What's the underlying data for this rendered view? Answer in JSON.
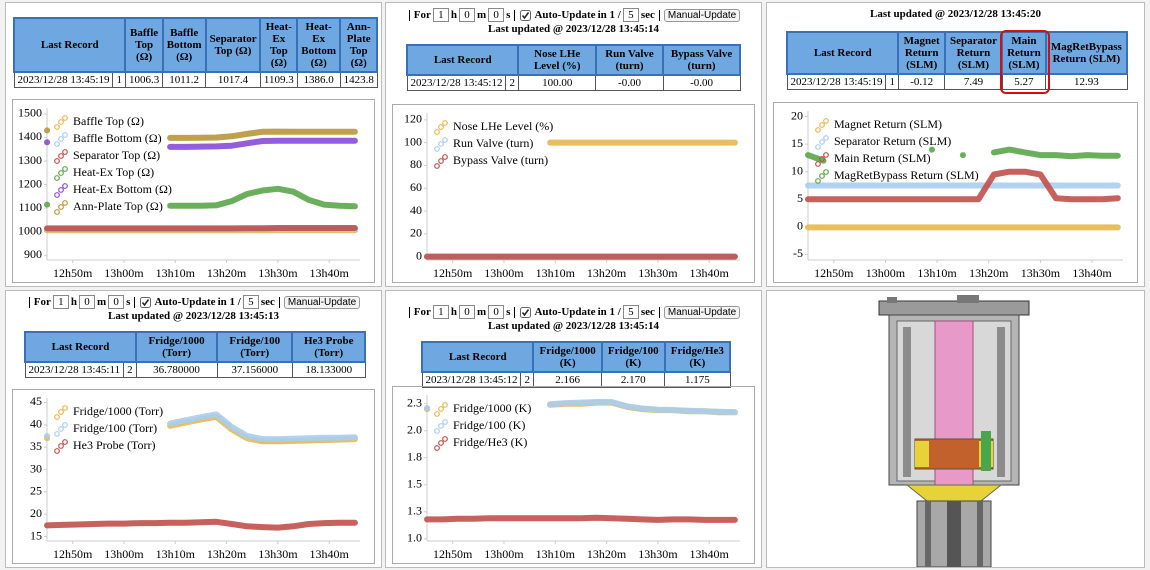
{
  "panels": [
    {
      "table": {
        "headers": [
          "Last Record",
          "Baffle Top (Ω)",
          "Baffle Bottom (Ω)",
          "Separator Top (Ω)",
          "Heat-Ex Top (Ω)",
          "Heat-Ex Bottom (Ω)",
          "Ann-Plate Top (Ω)"
        ],
        "rows": [
          [
            "2023/12/28 13:45:19",
            "1",
            "1006.3",
            "1011.2",
            "1017.4",
            "1109.3",
            "1386.0",
            "1423.8"
          ]
        ]
      },
      "chart_data": {
        "type": "line",
        "x": [
          765,
          768,
          771,
          774,
          777,
          780,
          783,
          786,
          789,
          792,
          795,
          798,
          801,
          804,
          807,
          810,
          813,
          816,
          819,
          822,
          825
        ],
        "xlim": [
          765,
          826
        ],
        "xticks": [
          {
            "value": 770,
            "label": "12h50m"
          },
          {
            "value": 780,
            "label": "13h00m"
          },
          {
            "value": 790,
            "label": "13h10m"
          },
          {
            "value": 800,
            "label": "13h20m"
          },
          {
            "value": 810,
            "label": "13h30m"
          },
          {
            "value": 820,
            "label": "13h40m"
          }
        ],
        "ylim": [
          880,
          1525
        ],
        "yticks": [
          900,
          1000,
          1100,
          1200,
          1300,
          1400,
          1500
        ],
        "series": [
          {
            "name": "Baffle Top (Ω)",
            "color": "#e6b84c",
            "values": [
              1006,
              1006,
              1006,
              1006,
              1006,
              1006,
              1006,
              1006,
              1006,
              1006,
              1006,
              1006,
              1006,
              1006,
              1006,
              1006,
              1006,
              1006,
              1006,
              1006,
              1006
            ]
          },
          {
            "name": "Baffle Bottom (Ω)",
            "color": "#a9cdf0",
            "values": [
              1011,
              1011,
              1011,
              1011,
              1011,
              1011,
              1011,
              1011,
              1011,
              1011,
              1011,
              1011,
              1011,
              1011,
              1011,
              1011,
              1011,
              1011,
              1011,
              1011,
              1011
            ]
          },
          {
            "name": "Separator Top (Ω)",
            "color": "#c0504d",
            "values": [
              1014,
              1014,
              1014,
              1014,
              1014,
              1014,
              1014,
              1014,
              1014,
              1014,
              1014,
              1014,
              1014,
              1015,
              1015,
              1016,
              1016,
              1016,
              1016,
              1016,
              1016
            ]
          },
          {
            "name": "Heat-Ex Top (Ω)",
            "color": "#5aa74a",
            "values": [
              1115,
              null,
              null,
              null,
              null,
              null,
              null,
              null,
              1110,
              1110,
              1110,
              1112,
              1130,
              1160,
              1175,
              1182,
              1170,
              1135,
              1115,
              1110,
              1108
            ]
          },
          {
            "name": "Heat-Ex Bottom (Ω)",
            "color": "#8a4bd8",
            "values": [
              1380,
              null,
              null,
              null,
              null,
              null,
              null,
              null,
              1360,
              1360,
              1361,
              1362,
              1365,
              1375,
              1385,
              1386,
              1386,
              1386,
              1386,
              1386,
              1386
            ]
          },
          {
            "name": "Ann-Plate Top (Ω)",
            "color": "#b8963a",
            "values": [
              1430,
              null,
              null,
              null,
              null,
              null,
              null,
              null,
              1398,
              1398,
              1399,
              1400,
              1405,
              1415,
              1424,
              1425,
              1424,
              1424,
              1424,
              1424,
              1424
            ]
          }
        ]
      }
    },
    {
      "controls": {
        "for": "For",
        "hours": "1",
        "h": "h",
        "minutes": "0",
        "m": "m",
        "seconds": "0",
        "s": "s",
        "auto_update": "Auto-Update",
        "interval_prefix": "in 1 /",
        "interval": "5",
        "sec": "sec",
        "button": "Manual-Update"
      },
      "last_updated": "Last updated @ 2023/12/28 13:45:14",
      "table": {
        "headers": [
          "Last Record",
          "Nose LHe Level (%)",
          "Run Valve (turn)",
          "Bypass Valve (turn)"
        ],
        "rows": [
          [
            "2023/12/28 13:45:12",
            "2",
            "100.00",
            "-0.00",
            "-0.00"
          ]
        ]
      },
      "chart_data": {
        "type": "line",
        "x": [
          765,
          768,
          771,
          774,
          777,
          780,
          783,
          786,
          789,
          792,
          795,
          798,
          801,
          804,
          807,
          810,
          813,
          816,
          819,
          822,
          825
        ],
        "xlim": [
          765,
          826
        ],
        "xticks": [
          {
            "value": 770,
            "label": "12h50m"
          },
          {
            "value": 780,
            "label": "13h00m"
          },
          {
            "value": 790,
            "label": "13h10m"
          },
          {
            "value": 800,
            "label": "13h20m"
          },
          {
            "value": 810,
            "label": "13h30m"
          },
          {
            "value": 820,
            "label": "13h40m"
          }
        ],
        "ylim": [
          -3,
          126
        ],
        "yticks": [
          0,
          20,
          40,
          60,
          80,
          100,
          120
        ],
        "series": [
          {
            "name": "Nose LHe Level (%)",
            "color": "#e6b84c",
            "values": [
              null,
              null,
              null,
              null,
              null,
              null,
              null,
              null,
              100,
              100,
              100,
              100,
              100,
              100,
              100,
              100,
              100,
              100,
              100,
              100,
              100
            ]
          },
          {
            "name": "Run Valve (turn)",
            "color": "#a9cdf0",
            "values": [
              0,
              0,
              0,
              0,
              0,
              0,
              0,
              0,
              0,
              0,
              0,
              0,
              0,
              0,
              0,
              0,
              0,
              0,
              0,
              0,
              0
            ]
          },
          {
            "name": "Bypass Valve (turn)",
            "color": "#c0504d",
            "values": [
              0,
              0,
              0,
              0,
              0,
              0,
              0,
              0,
              0,
              0,
              0,
              0,
              0,
              0,
              0,
              0,
              0,
              0,
              0,
              0,
              0
            ]
          }
        ]
      }
    },
    {
      "last_updated": "Last updated @ 2023/12/28 13:45:20",
      "table": {
        "headers": [
          "Last Record",
          "Magnet Return (SLM)",
          "Separator Return (SLM)",
          "Main Return (SLM)",
          "MagRetBypass Return (SLM)"
        ],
        "rows": [
          [
            "2023/12/28 13:45:19",
            "1",
            "-0.12",
            "7.49",
            "5.27",
            "12.93"
          ]
        ]
      },
      "chart_data": {
        "type": "line",
        "x": [
          765,
          768,
          771,
          774,
          777,
          780,
          783,
          786,
          789,
          792,
          795,
          798,
          801,
          804,
          807,
          810,
          813,
          816,
          819,
          822,
          825
        ],
        "xlim": [
          765,
          826
        ],
        "xticks": [
          {
            "value": 770,
            "label": "12h50m"
          },
          {
            "value": 780,
            "label": "13h00m"
          },
          {
            "value": 790,
            "label": "13h10m"
          },
          {
            "value": 800,
            "label": "13h20m"
          },
          {
            "value": 810,
            "label": "13h30m"
          },
          {
            "value": 820,
            "label": "13h40m"
          }
        ],
        "ylim": [
          -6,
          21
        ],
        "yticks": [
          -5,
          0,
          5,
          10,
          15,
          20
        ],
        "series": [
          {
            "name": "Magnet Return (SLM)",
            "color": "#e6b84c",
            "values": [
              -0.1,
              -0.1,
              -0.1,
              -0.1,
              -0.1,
              -0.1,
              -0.1,
              -0.1,
              -0.1,
              -0.1,
              -0.1,
              -0.1,
              -0.1,
              -0.1,
              -0.1,
              -0.1,
              -0.1,
              -0.1,
              -0.1,
              -0.1,
              -0.1
            ]
          },
          {
            "name": "Separator Return (SLM)",
            "color": "#a9cdf0",
            "values": [
              7.5,
              7.5,
              7.5,
              7.5,
              7.5,
              7.5,
              7.5,
              7.5,
              7.5,
              7.5,
              7.5,
              7.5,
              7.5,
              7.5,
              7.5,
              7.5,
              7.5,
              7.5,
              7.5,
              7.5,
              7.5
            ]
          },
          {
            "name": "Main Return (SLM)",
            "color": "#c0504d",
            "values": [
              5,
              5,
              5,
              5,
              5,
              5,
              5,
              5,
              5,
              5,
              5,
              5,
              9.5,
              10,
              10,
              9.5,
              5.2,
              5,
              5,
              5,
              5.2
            ]
          },
          {
            "name": "MagRetBypass Return (SLM)",
            "color": "#5aa74a",
            "values": [
              13,
              12,
              null,
              null,
              null,
              null,
              null,
              null,
              14,
              null,
              13,
              null,
              13.5,
              14,
              13.5,
              13,
              13,
              12.8,
              13,
              12.9,
              12.9
            ]
          }
        ]
      }
    },
    {
      "controls": {
        "for": "For",
        "hours": "1",
        "h": "h",
        "minutes": "0",
        "m": "m",
        "seconds": "0",
        "s": "s",
        "auto_update": "Auto-Update",
        "interval_prefix": "in 1 /",
        "interval": "5",
        "sec": "sec",
        "button": "Manual-Update"
      },
      "last_updated": "Last updated @ 2023/12/28 13:45:13",
      "table": {
        "headers": [
          "Last Record",
          "Fridge/1000 (Torr)",
          "Fridge/100 (Torr)",
          "He3 Probe (Torr)"
        ],
        "rows": [
          [
            "2023/12/28 13:45:11",
            "2",
            "36.780000",
            "37.156000",
            "18.133000"
          ]
        ]
      },
      "chart_data": {
        "type": "line",
        "x": [
          765,
          768,
          771,
          774,
          777,
          780,
          783,
          786,
          789,
          792,
          795,
          798,
          801,
          804,
          807,
          810,
          813,
          816,
          819,
          822,
          825
        ],
        "xlim": [
          765,
          826
        ],
        "xticks": [
          {
            "value": 770,
            "label": "12h50m"
          },
          {
            "value": 780,
            "label": "13h00m"
          },
          {
            "value": 790,
            "label": "13h10m"
          },
          {
            "value": 800,
            "label": "13h20m"
          },
          {
            "value": 810,
            "label": "13h30m"
          },
          {
            "value": 820,
            "label": "13h40m"
          }
        ],
        "ylim": [
          14,
          46
        ],
        "yticks": [
          15,
          20,
          25,
          30,
          35,
          40,
          45
        ],
        "series": [
          {
            "name": "Fridge/1000 (Torr)",
            "color": "#e6b84c",
            "values": [
              37,
              null,
              null,
              null,
              null,
              null,
              null,
              null,
              39.8,
              40.5,
              41.2,
              41.8,
              39,
              37,
              36.3,
              36.3,
              36.4,
              36.5,
              36.6,
              36.7,
              36.8
            ]
          },
          {
            "name": "Fridge/100 (Torr)",
            "color": "#a9cdf0",
            "values": [
              37.5,
              null,
              null,
              null,
              null,
              null,
              null,
              null,
              40.3,
              41,
              41.7,
              42.3,
              39.5,
              37.5,
              36.8,
              36.8,
              36.9,
              37,
              37.1,
              37.1,
              37.2
            ]
          },
          {
            "name": "He3 Probe (Torr)",
            "color": "#c0504d",
            "values": [
              17.5,
              17.6,
              17.7,
              17.8,
              17.9,
              17.9,
              18,
              18,
              18.1,
              18.1,
              18.2,
              18.3,
              17.8,
              17.3,
              17.1,
              17,
              17.3,
              17.8,
              18,
              18.1,
              18.1
            ]
          }
        ]
      }
    },
    {
      "controls": {
        "for": "For",
        "hours": "1",
        "h": "h",
        "minutes": "0",
        "m": "m",
        "seconds": "0",
        "s": "s",
        "auto_update": "Auto-Update",
        "interval_prefix": "in 1 /",
        "interval": "5",
        "sec": "sec",
        "button": "Manual-Update"
      },
      "last_updated": "Last updated @ 2023/12/28 13:45:14",
      "table": {
        "headers": [
          "Last Record",
          "Fridge/1000 (K)",
          "Fridge/100 (K)",
          "Fridge/He3 (K)"
        ],
        "rows": [
          [
            "2023/12/28 13:45:12",
            "2",
            "2.166",
            "2.170",
            "1.175"
          ]
        ]
      },
      "chart_data": {
        "type": "line",
        "x": [
          765,
          768,
          771,
          774,
          777,
          780,
          783,
          786,
          789,
          792,
          795,
          798,
          801,
          804,
          807,
          810,
          813,
          816,
          819,
          822,
          825
        ],
        "xlim": [
          765,
          826
        ],
        "xticks": [
          {
            "value": 770,
            "label": "12h50m"
          },
          {
            "value": 780,
            "label": "13h00m"
          },
          {
            "value": 790,
            "label": "13h10m"
          },
          {
            "value": 800,
            "label": "13h20m"
          },
          {
            "value": 810,
            "label": "13h30m"
          },
          {
            "value": 820,
            "label": "13h40m"
          }
        ],
        "ylim": [
          0.98,
          2.33
        ],
        "yticks": [
          {
            "value": 1,
            "label": "1.0"
          },
          {
            "value": 1.25,
            "label": "1.3"
          },
          1.5,
          {
            "value": 1.75,
            "label": "1.8"
          },
          {
            "value": 2,
            "label": "2.0"
          },
          {
            "value": 2.25,
            "label": "2.3"
          }
        ],
        "series": [
          {
            "name": "Fridge/1000 (K)",
            "color": "#e6b84c",
            "values": [
              2.2,
              null,
              null,
              null,
              null,
              null,
              null,
              null,
              2.24,
              2.25,
              2.25,
              2.26,
              2.26,
              2.22,
              2.2,
              2.19,
              2.19,
              2.18,
              2.18,
              2.17,
              2.17
            ]
          },
          {
            "name": "Fridge/100 (K)",
            "color": "#a9cdf0",
            "values": [
              2.21,
              null,
              null,
              null,
              null,
              null,
              null,
              null,
              2.245,
              2.255,
              2.26,
              2.265,
              2.265,
              2.225,
              2.205,
              2.195,
              2.19,
              2.185,
              2.18,
              2.175,
              2.17
            ]
          },
          {
            "name": "Fridge/He3 (K)",
            "color": "#c0504d",
            "values": [
              1.18,
              1.18,
              1.185,
              1.185,
              1.19,
              1.19,
              1.19,
              1.19,
              1.19,
              1.19,
              1.19,
              1.195,
              1.19,
              1.185,
              1.18,
              1.175,
              1.18,
              1.18,
              1.175,
              1.175,
              1.175
            ]
          }
        ]
      }
    }
  ]
}
